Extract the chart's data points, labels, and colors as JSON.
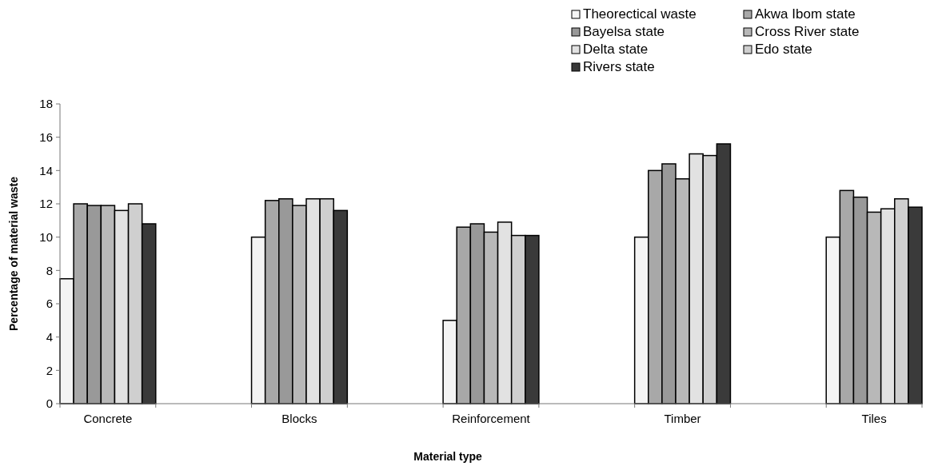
{
  "chart_data": {
    "type": "bar",
    "xlabel": "Material type",
    "ylabel": "Percentage of material waste",
    "categories": [
      "Concrete",
      "Blocks",
      "Reinforcement",
      "Timber",
      "Tiles"
    ],
    "series": [
      {
        "name": "Theorectical waste",
        "color": "#f4f4f4",
        "values": [
          7.5,
          10.0,
          5.0,
          10.0,
          10.0
        ]
      },
      {
        "name": "Akwa Ibom state",
        "color": "#a8a8a8",
        "values": [
          12.0,
          12.2,
          10.6,
          14.0,
          12.8
        ]
      },
      {
        "name": "Bayelsa state",
        "color": "#999999",
        "values": [
          11.9,
          12.3,
          10.8,
          14.4,
          12.4
        ]
      },
      {
        "name": "Cross River state",
        "color": "#b8b8b8",
        "values": [
          11.9,
          11.9,
          10.3,
          13.5,
          11.5
        ]
      },
      {
        "name": "Delta state",
        "color": "#e2e2e2",
        "values": [
          11.6,
          12.3,
          10.9,
          15.0,
          11.7
        ]
      },
      {
        "name": "Edo state",
        "color": "#cfcfcf",
        "values": [
          12.0,
          12.3,
          10.1,
          14.9,
          12.3
        ]
      },
      {
        "name": "Rivers state",
        "color": "#3a3a3a",
        "values": [
          10.8,
          11.6,
          10.1,
          15.6,
          11.8
        ]
      }
    ],
    "ylim": [
      0,
      18
    ],
    "yticks": [
      0,
      2,
      4,
      6,
      8,
      10,
      12,
      14,
      16,
      18
    ],
    "grid": false,
    "legend": "top right"
  }
}
